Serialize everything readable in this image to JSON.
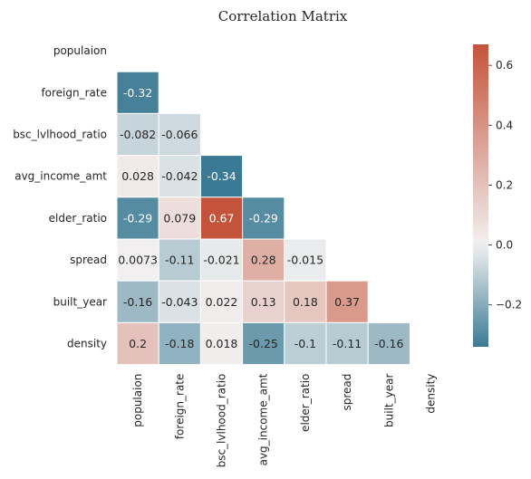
{
  "chart_data": {
    "type": "heatmap",
    "title": "Correlation Matrix",
    "variables": [
      "populaion",
      "foreign_rate",
      "bsc_lvlhood_ratio",
      "avg_income_amt",
      "elder_ratio",
      "spread",
      "built_year",
      "density"
    ],
    "mask": "upper-triangle-including-diagonal",
    "lower_triangle": [
      [],
      [
        -0.32
      ],
      [
        -0.082,
        -0.066
      ],
      [
        0.028,
        -0.042,
        -0.34
      ],
      [
        -0.29,
        0.079,
        0.67,
        -0.29
      ],
      [
        0.0073,
        -0.11,
        -0.021,
        0.28,
        -0.015
      ],
      [
        -0.16,
        -0.043,
        0.022,
        0.13,
        0.18,
        0.37
      ],
      [
        0.2,
        -0.18,
        0.018,
        -0.25,
        -0.1,
        -0.11,
        -0.16
      ]
    ],
    "cell_labels": [
      [],
      [
        "-0.32"
      ],
      [
        "-0.082",
        "-0.066"
      ],
      [
        "0.028",
        "-0.042",
        "-0.34"
      ],
      [
        "-0.29",
        "0.079",
        "0.67",
        "-0.29"
      ],
      [
        "0.0073",
        "-0.11",
        "-0.021",
        "0.28",
        "-0.015"
      ],
      [
        "-0.16",
        "-0.043",
        "0.022",
        "0.13",
        "0.18",
        "0.37"
      ],
      [
        "0.2",
        "-0.18",
        "0.018",
        "-0.25",
        "-0.1",
        "-0.11",
        "-0.16"
      ]
    ],
    "colorbar": {
      "vmin": -0.34,
      "vmax": 0.67,
      "ticks": [
        -0.2,
        0.0,
        0.2,
        0.4,
        0.6
      ],
      "tick_labels": [
        "−0.2",
        "0.0",
        "0.2",
        "0.4",
        "0.6"
      ],
      "colormap": "diverging blue-white-red",
      "low_color": "#3b7a94",
      "mid_color": "#f2f1f1",
      "high_color": "#c4533b"
    },
    "grid": false
  }
}
